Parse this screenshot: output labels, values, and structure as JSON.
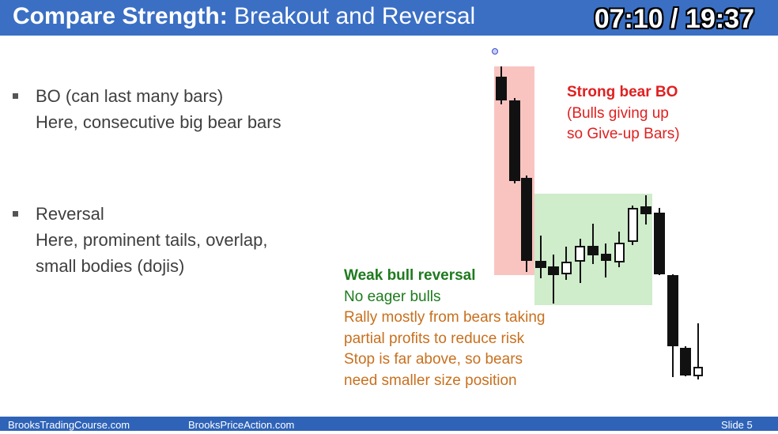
{
  "header": {
    "title_bold": "Compare Strength:",
    "title_rest": "Breakout and Reversal",
    "timer": "07:10 / 19:37"
  },
  "bullets": [
    {
      "lines": [
        "BO (can last many bars)",
        "Here, consecutive big bear bars"
      ]
    },
    {
      "lines": [
        "Reversal",
        "Here, prominent tails, overlap,",
        "small bodies (dojis)"
      ]
    }
  ],
  "annotations": {
    "bear": {
      "title": "Strong bear BO",
      "lines": [
        "(Bulls giving up",
        "so Give-up Bars)"
      ]
    },
    "bull": {
      "title": "Weak bull reversal",
      "line1": "No eager bulls",
      "lines": [
        "Rally mostly from bears taking",
        "partial profits to reduce risk",
        "Stop is far above, so bears",
        "need smaller size position"
      ]
    }
  },
  "colors": {
    "header_bg": "#3a6fc4",
    "bear_zone": "#f9c4c0",
    "bull_zone": "#cfeccb",
    "bear_text": "#e02020",
    "bull_title": "#1e7a1e",
    "orange_text": "#c8701e"
  },
  "footer": {
    "left": "BrooksTradingCourse.com",
    "middle": "BrooksPriceAction.com",
    "right": "Slide  5"
  }
}
